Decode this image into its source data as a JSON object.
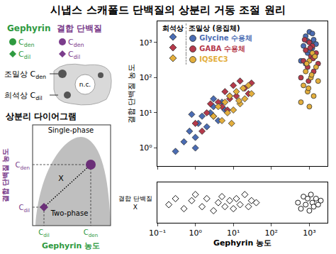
{
  "title": "시냅스 스캐폴드 단백질의 상분리 거동 조절 원리",
  "legend_panel": {
    "items": [
      {
        "label": "Gephyrin",
        "color": "#2e9a3f",
        "dense": "Cden",
        "dilute": "Cdil"
      },
      {
        "label": "결합 단백질",
        "color": "#7b3c8c",
        "dense": "Cden",
        "dilute": "Cdil"
      }
    ]
  },
  "cell_schematic": {
    "dense_label": "조밀상",
    "dense_symbol": "Cden",
    "dilute_label": "희석상",
    "dilute_symbol": "Cdil",
    "nucleus_label": "n.c."
  },
  "phase_diagram": {
    "title": "상분리 다이어그램",
    "single_phase": "Single-phase",
    "two_phase": "Two-phase",
    "x_label": "Gephyrin 농도",
    "y_label": "결합 단백질 농도",
    "x_ticks": [
      "Cdil",
      "Cden"
    ],
    "y_ticks": [
      "Cdil",
      "Cden"
    ],
    "point_label": "X"
  },
  "chart_data": [
    {
      "type": "scatter",
      "y_label": "결합 단백질 농도",
      "log": true,
      "grid": false,
      "xlim": [
        0.1,
        3000
      ],
      "ylim": [
        0.3,
        4000
      ],
      "xticks": [
        {
          "value": 0.1,
          "label": "10⁻¹"
        },
        {
          "value": 1,
          "label": "10⁰"
        },
        {
          "value": 10,
          "label": "10¹"
        },
        {
          "value": 100,
          "label": "10²"
        },
        {
          "value": 1000,
          "label": "10³"
        }
      ],
      "yticks": [
        {
          "value": 1,
          "label": "10⁰"
        },
        {
          "value": 10,
          "label": "10¹"
        },
        {
          "value": 100,
          "label": "10²"
        },
        {
          "value": 1000,
          "label": "10³"
        }
      ],
      "tick_labels": "y",
      "legend": "top-left",
      "legend_headers": [
        "희석상",
        "조밀상 (응집체)"
      ],
      "series": [
        {
          "name": "Glycine 수용체",
          "color": "#4a6cb3",
          "dilute": {
            "marker": "diamond",
            "x": [
              0.3,
              0.5,
              0.7,
              1,
              1.2,
              1.5,
              2,
              2.5,
              3,
              4,
              5,
              6,
              8,
              1,
              0.8,
              3
            ],
            "y": [
              0.8,
              1.5,
              3,
              2,
              5,
              8,
              4,
              10,
              15,
              6,
              20,
              12,
              30,
              1,
              9,
              25
            ]
          },
          "dense": {
            "marker": "circle",
            "x": [
              600,
              700,
              800,
              900,
              1000,
              1100,
              1200,
              1300,
              1400,
              1500,
              800,
              1000,
              1200,
              900
            ],
            "y": [
              300,
              800,
              1500,
              500,
              2000,
              1000,
              700,
              1200,
              400,
              900,
              250,
              600,
              1800,
              1100
            ]
          }
        },
        {
          "name": "GABA 수용체",
          "color": "#b5394a",
          "dilute": {
            "marker": "diamond",
            "x": [
              1,
              1.5,
              2,
              3,
              4,
              5,
              6,
              8,
              10,
              12,
              15,
              20,
              25,
              2.5,
              7,
              30
            ],
            "y": [
              5,
              3,
              10,
              8,
              20,
              15,
              40,
              25,
              60,
              30,
              80,
              50,
              35,
              18,
              12,
              70
            ]
          },
          "dense": {
            "marker": "circle",
            "x": [
              600,
              700,
              800,
              900,
              1000,
              1100,
              1200,
              1300,
              1500,
              1700,
              750,
              1050,
              1250,
              950
            ],
            "y": [
              100,
              300,
              600,
              200,
              1000,
              400,
              800,
              150,
              500,
              250,
              1200,
              700,
              350,
              80
            ]
          }
        },
        {
          "name": "IQSEC3",
          "color": "#e3ae3c",
          "dilute": {
            "marker": "diamond",
            "x": [
              3,
              4,
              5,
              6,
              7,
              8,
              10,
              12,
              15,
              18,
              20,
              25,
              30,
              9,
              14
            ],
            "y": [
              8,
              15,
              6,
              20,
              10,
              30,
              12,
              40,
              18,
              50,
              25,
              60,
              35,
              5,
              22
            ]
          },
          "dense": {
            "marker": "circle",
            "x": [
              600,
              700,
              800,
              900,
              1000,
              1100,
              1200,
              1300,
              1500,
              1700,
              850,
              1000,
              1150,
              1400,
              950
            ],
            "y": [
              20,
              60,
              150,
              40,
              300,
              100,
              500,
              30,
              200,
              80,
              250,
              15,
              120,
              400,
              50
            ]
          }
        }
      ]
    },
    {
      "type": "scatter",
      "y_label": "결합 단백질 X",
      "x_label": "Gephyrin 농도",
      "log": "x",
      "grid": false,
      "xlim": [
        0.1,
        3000
      ],
      "ylim": [
        0,
        1
      ],
      "xticks": [
        {
          "value": 0.1,
          "label": "10⁻¹"
        },
        {
          "value": 1,
          "label": "10⁰"
        },
        {
          "value": 10,
          "label": "10¹"
        },
        {
          "value": 100,
          "label": "10²"
        },
        {
          "value": 1000,
          "label": "10³"
        }
      ],
      "tick_labels": "x",
      "series": [
        {
          "marker": "diamond",
          "color": "#ffffff",
          "x": [
            0.2,
            0.3,
            0.5,
            0.8,
            1,
            1.5,
            2,
            3,
            4,
            5,
            6,
            8,
            10,
            12,
            15,
            20,
            25,
            30,
            40
          ],
          "y": [
            0.45,
            0.6,
            0.35,
            0.55,
            0.7,
            0.4,
            0.6,
            0.3,
            0.5,
            0.65,
            0.4,
            0.55,
            0.35,
            0.6,
            0.45,
            0.7,
            0.4,
            0.55,
            0.5
          ]
        },
        {
          "marker": "circle",
          "color": "#ffffff",
          "x": [
            500,
            600,
            700,
            800,
            900,
            1000,
            1100,
            1200,
            1300,
            1500,
            1700,
            2000
          ],
          "y": [
            0.5,
            0.35,
            0.65,
            0.45,
            0.6,
            0.3,
            0.7,
            0.5,
            0.4,
            0.6,
            0.45,
            0.55
          ]
        }
      ]
    }
  ]
}
